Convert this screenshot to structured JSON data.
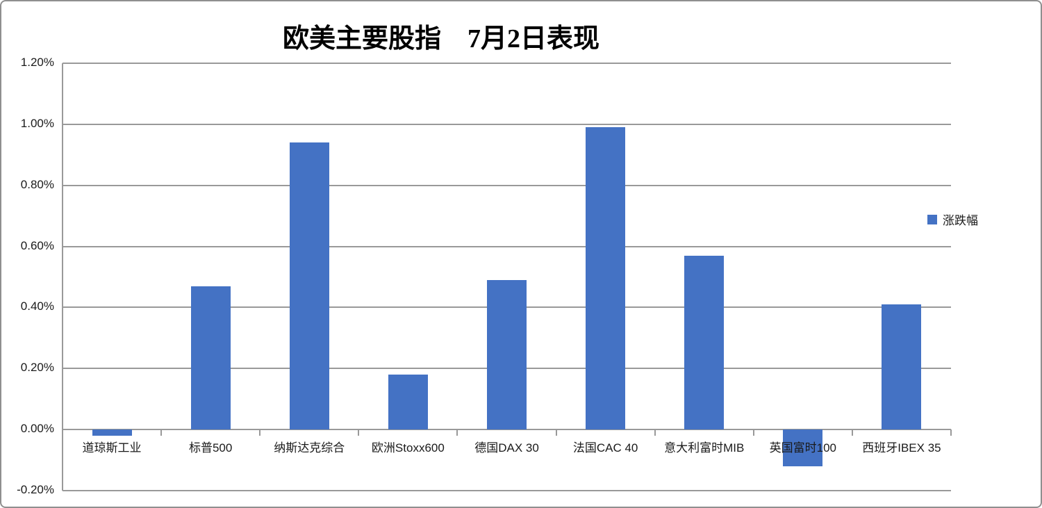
{
  "chart_data": {
    "type": "bar",
    "title": "欧美主要股指　7月2日表现",
    "categories": [
      "道琼斯工业",
      "标普500",
      "纳斯达克综合",
      "欧洲Stoxx600",
      "德国DAX 30",
      "法国CAC 40",
      "意大利富时MIB",
      "英国富时100",
      "西班牙IBEX 35"
    ],
    "series": [
      {
        "name": "涨跌幅",
        "values": [
          -0.02,
          0.47,
          0.94,
          0.18,
          0.49,
          0.99,
          0.57,
          -0.12,
          0.41
        ]
      }
    ],
    "value_unit": "%",
    "xlabel": "",
    "ylabel": "",
    "ylim": [
      -0.2,
      1.2
    ],
    "ytick_step": 0.2,
    "ytick_labels": [
      "1.20%",
      "1.00%",
      "0.80%",
      "0.60%",
      "0.40%",
      "0.20%",
      "0.00%",
      "-0.20%"
    ],
    "grid": true,
    "legend": {
      "entries": [
        "涨跌幅"
      ],
      "position": "right"
    },
    "colors": {
      "bar": "#4472C4",
      "gridline": "#999999",
      "axis": "#999999",
      "label_text": "#1a1a1a",
      "title_text": "#000000"
    }
  }
}
